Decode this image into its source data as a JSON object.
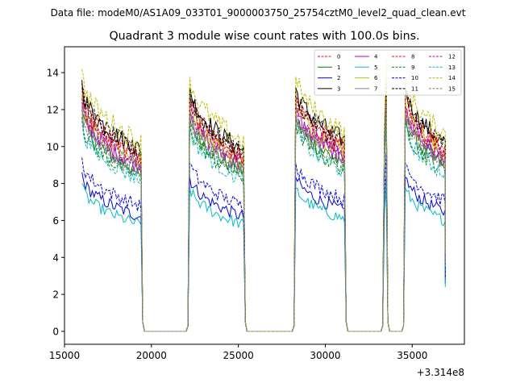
{
  "suptitle": "Data file: modeM0/AS1A09_033T01_9000003750_25754cztM0_level2_quad_clean.evt",
  "chart_data": {
    "type": "line",
    "title": "Quadrant 3 module wise count rates with 100.0s bins.",
    "xlabel": "",
    "ylabel": "",
    "xlim": [
      15000,
      38000
    ],
    "ylim": [
      -0.7,
      15.4
    ],
    "x_offset_label": "+3.314e8",
    "x_ticks": [
      15000,
      20000,
      25000,
      30000,
      35000
    ],
    "x_tick_labels": [
      "15000",
      "20000",
      "25000",
      "30000",
      "35000"
    ],
    "y_ticks": [
      0,
      2,
      4,
      6,
      8,
      10,
      12,
      14
    ],
    "y_tick_labels": [
      "0",
      "2",
      "4",
      "6",
      "8",
      "10",
      "12",
      "14"
    ],
    "grid": false,
    "legend_position": "top-right",
    "segments": [
      {
        "start": 16000,
        "end": 19400,
        "decay": 0.72
      },
      {
        "start": 22200,
        "end": 25300,
        "decay": 0.72
      },
      {
        "start": 28300,
        "end": 31100,
        "decay": 0.76
      },
      {
        "start": 33400,
        "end": 33500,
        "decay": 1.0
      },
      {
        "start": 34600,
        "end": 36900,
        "decay": 0.75
      }
    ],
    "gap_level": 0,
    "series": [
      {
        "name": "0",
        "color": "#ff0000",
        "dash": "dashed",
        "level": 13.2
      },
      {
        "name": "1",
        "color": "#008000",
        "dash": "solid",
        "level": 12.0
      },
      {
        "name": "2",
        "color": "#0000ff",
        "dash": "solid",
        "level": 8.6
      },
      {
        "name": "3",
        "color": "#000000",
        "dash": "solid",
        "level": 13.6
      },
      {
        "name": "4",
        "color": "#bf00bf",
        "dash": "solid",
        "level": 12.4
      },
      {
        "name": "5",
        "color": "#00bfbf",
        "dash": "solid",
        "level": 8.0
      },
      {
        "name": "6",
        "color": "#bfbf00",
        "dash": "solid",
        "level": 12.8
      },
      {
        "name": "7",
        "color": "#808080",
        "dash": "solid",
        "level": 12.2
      },
      {
        "name": "8",
        "color": "#ff0000",
        "dash": "dashed",
        "level": 13.0
      },
      {
        "name": "9",
        "color": "#008000",
        "dash": "dashed",
        "level": 11.6
      },
      {
        "name": "10",
        "color": "#0000ff",
        "dash": "dashed",
        "level": 9.4
      },
      {
        "name": "11",
        "color": "#000000",
        "dash": "dashed",
        "level": 13.4
      },
      {
        "name": "12",
        "color": "#bf00bf",
        "dash": "dashed",
        "level": 12.6
      },
      {
        "name": "13",
        "color": "#00bfbf",
        "dash": "dashed",
        "level": 11.4
      },
      {
        "name": "14",
        "color": "#bfbf00",
        "dash": "dashed",
        "level": 14.2
      },
      {
        "name": "15",
        "color": "#808080",
        "dash": "dashed",
        "level": 12.0
      }
    ]
  }
}
